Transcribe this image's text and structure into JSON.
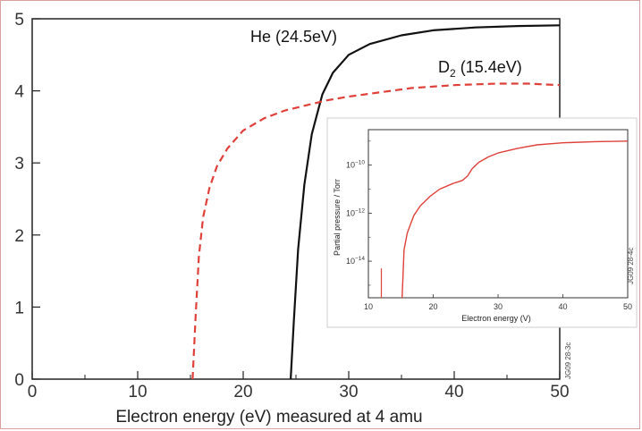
{
  "chart_data": [
    {
      "type": "line",
      "xlabel": "Electron energy (eV) measured at 4 amu",
      "ylabel": "",
      "xlim": [
        0,
        50
      ],
      "ylim": [
        0,
        5
      ],
      "x_ticks": [
        0,
        10,
        20,
        30,
        40,
        50
      ],
      "y_ticks": [
        0,
        1,
        2,
        3,
        4,
        5
      ],
      "grid": false,
      "series": [
        {
          "name": "He (24.5eV)",
          "color": "#111111",
          "style": "solid",
          "x": [
            24.5,
            24.8,
            25.2,
            25.8,
            26.5,
            27.5,
            28.5,
            30,
            32,
            35,
            38,
            42,
            46,
            50
          ],
          "y": [
            0,
            0.8,
            1.8,
            2.7,
            3.4,
            3.95,
            4.25,
            4.5,
            4.65,
            4.77,
            4.84,
            4.88,
            4.9,
            4.91
          ]
        },
        {
          "name": "D2 (15.4eV)",
          "name_base": "D",
          "name_sub": "2",
          "name_rest": " (15.4eV)",
          "color": "#e0403a",
          "style": "dashed",
          "x": [
            15.2,
            15.5,
            15.8,
            16.2,
            16.8,
            17.5,
            18.5,
            20,
            22,
            24,
            26,
            28,
            30,
            33,
            36,
            40,
            44,
            47,
            50
          ],
          "y": [
            0,
            0.9,
            1.7,
            2.25,
            2.65,
            2.95,
            3.2,
            3.45,
            3.62,
            3.73,
            3.8,
            3.87,
            3.92,
            3.98,
            4.04,
            4.08,
            4.1,
            4.1,
            4.08
          ]
        }
      ],
      "watermark": "JG09 28-3c"
    },
    {
      "type": "line",
      "xlabel": "Electron energy (V)",
      "ylabel": "Partial pressure / Torr",
      "xlim": [
        10,
        50
      ],
      "x_ticks": [
        10,
        20,
        30,
        40,
        50
      ],
      "y_scale": "log",
      "ylim": [
        3e-16,
        3e-09
      ],
      "y_tick_labels": [
        {
          "base": "10",
          "exp": "−10",
          "value": 1e-10
        },
        {
          "base": "10",
          "exp": "−12",
          "value": 1e-12
        },
        {
          "base": "10",
          "exp": "−14",
          "value": 1e-14
        }
      ],
      "series": [
        {
          "color": "#e0403a",
          "x": [
            15.2,
            15.5,
            16,
            17,
            18,
            19.5,
            21,
            23,
            24.5,
            25.3,
            26,
            27,
            28.5,
            30,
            33,
            36,
            40,
            45,
            50
          ],
          "y": [
            3e-16,
            3e-14,
            1.5e-13,
            8e-13,
            2e-12,
            5e-12,
            1e-11,
            1.7e-11,
            2.3e-11,
            3.5e-11,
            7e-11,
            1.3e-10,
            2.2e-10,
            3.2e-10,
            5e-10,
            7e-10,
            8.5e-10,
            9.5e-10,
            1e-09
          ]
        }
      ],
      "spike": {
        "x": 12,
        "y_from": 3e-16,
        "y_to": 5e-15,
        "color": "#e0403a"
      },
      "watermark": "JG09 28-4c"
    }
  ]
}
